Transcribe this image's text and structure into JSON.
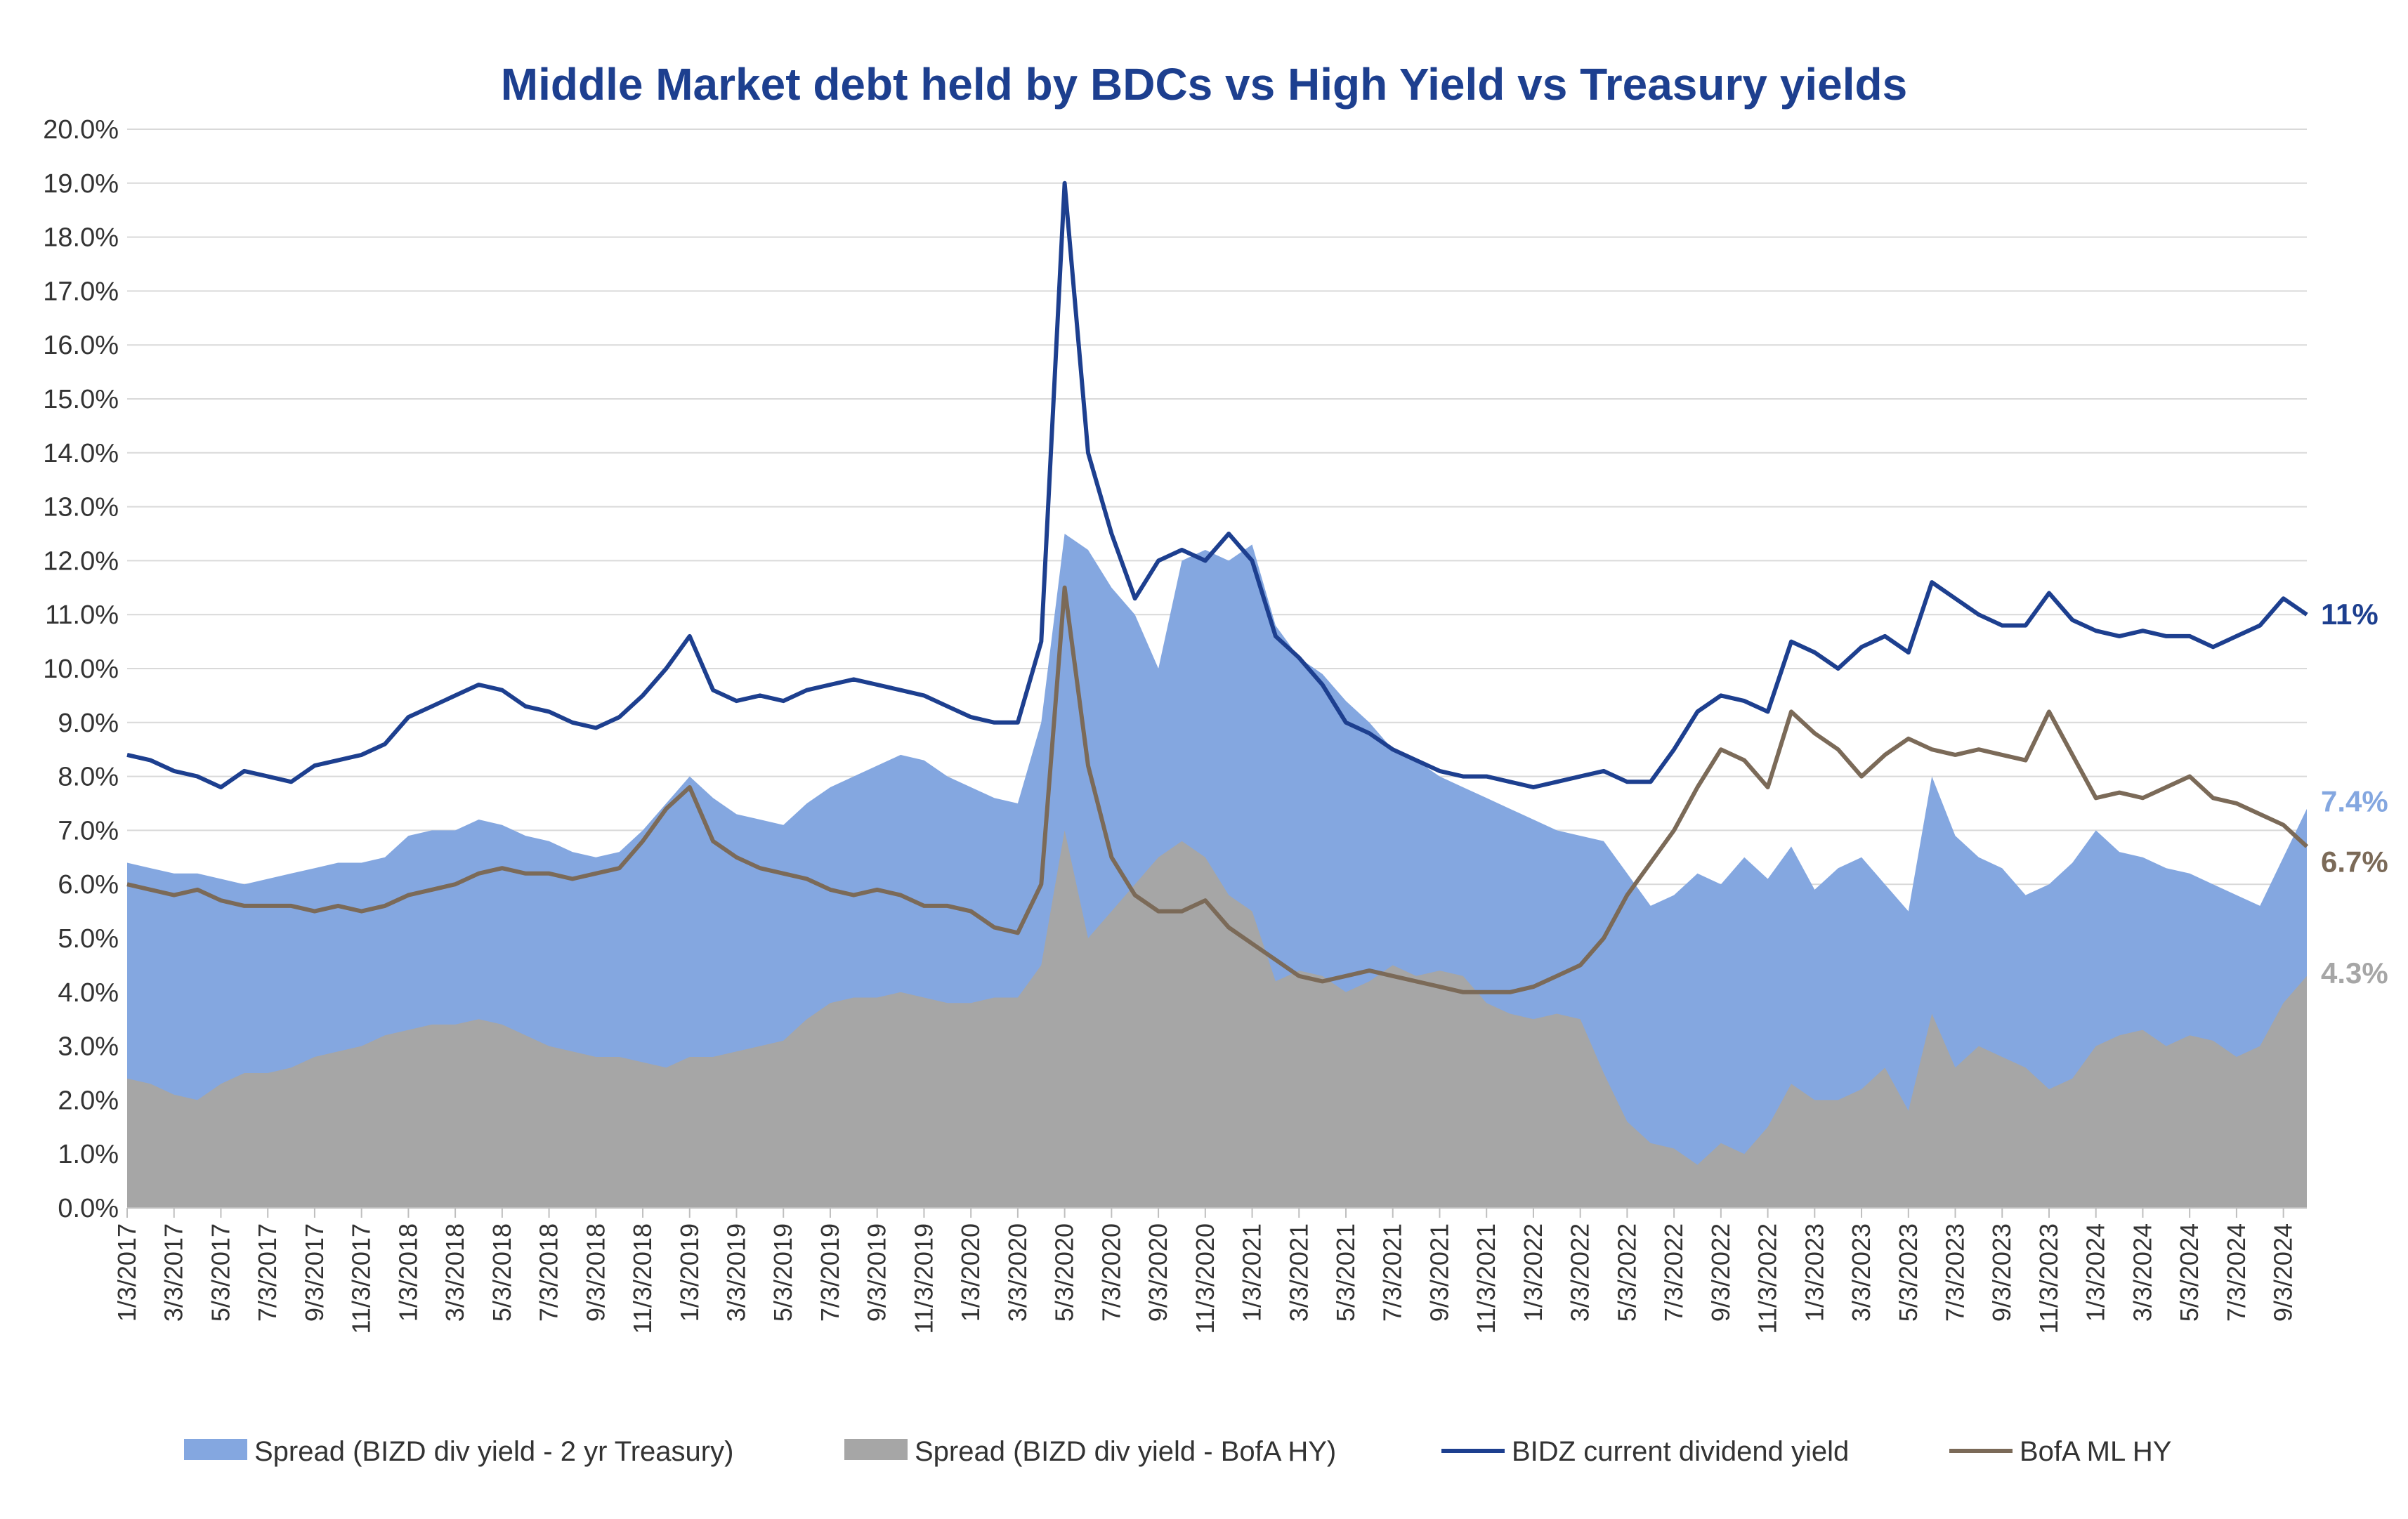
{
  "chart_data": {
    "type": "area",
    "title": "Middle Market debt held by BDCs vs High Yield vs Treasury yields",
    "xlabel": "",
    "ylabel": "",
    "ylim": [
      0,
      20
    ],
    "y_tick_labels": [
      "0.0%",
      "1.0%",
      "2.0%",
      "3.0%",
      "4.0%",
      "5.0%",
      "6.0%",
      "7.0%",
      "8.0%",
      "9.0%",
      "10.0%",
      "11.0%",
      "12.0%",
      "13.0%",
      "14.0%",
      "15.0%",
      "16.0%",
      "17.0%",
      "18.0%",
      "19.0%",
      "20.0%"
    ],
    "x_tick_labels": [
      "1/3/2017",
      "3/3/2017",
      "5/3/2017",
      "7/3/2017",
      "9/3/2017",
      "11/3/2017",
      "1/3/2018",
      "3/3/2018",
      "5/3/2018",
      "7/3/2018",
      "9/3/2018",
      "11/3/2018",
      "1/3/2019",
      "3/3/2019",
      "5/3/2019",
      "7/3/2019",
      "9/3/2019",
      "11/3/2019",
      "1/3/2020",
      "3/3/2020",
      "5/3/2020",
      "7/3/2020",
      "9/3/2020",
      "11/3/2020",
      "1/3/2021",
      "3/3/2021",
      "5/3/2021",
      "7/3/2021",
      "9/3/2021",
      "11/3/2021",
      "1/3/2022",
      "3/3/2022",
      "5/3/2022",
      "7/3/2022",
      "9/3/2022",
      "11/3/2022",
      "1/3/2023",
      "3/3/2023",
      "5/3/2023",
      "7/3/2023",
      "9/3/2023",
      "11/3/2023",
      "1/3/2024",
      "3/3/2024",
      "5/3/2024",
      "7/3/2024",
      "9/3/2024"
    ],
    "x_months": [
      0,
      1,
      2,
      3,
      4,
      5,
      6,
      7,
      8,
      9,
      10,
      11,
      12,
      13,
      14,
      15,
      16,
      17,
      18,
      19,
      20,
      21,
      22,
      23,
      24,
      25,
      26,
      27,
      28,
      29,
      30,
      31,
      32,
      33,
      34,
      35,
      36,
      37,
      38,
      39,
      40,
      41,
      42,
      43,
      44,
      45,
      46,
      47,
      48,
      49,
      50,
      51,
      52,
      53,
      54,
      55,
      56,
      57,
      58,
      59,
      60,
      61,
      62,
      63,
      64,
      65,
      66,
      67,
      68,
      69,
      70,
      71,
      72,
      73,
      74,
      75,
      76,
      77,
      78,
      79,
      80,
      81,
      82,
      83,
      84,
      85,
      86,
      87,
      88,
      89,
      90,
      91,
      92,
      93
    ],
    "x_range_months": [
      0,
      93
    ],
    "series": [
      {
        "name": "Spread (BIZD div yield - 2 yr Treasury)",
        "kind": "area",
        "color": "#84a7e0",
        "end_label": "7.4%",
        "values": [
          6.4,
          6.3,
          6.2,
          6.2,
          6.1,
          6.0,
          6.1,
          6.2,
          6.3,
          6.4,
          6.4,
          6.5,
          6.9,
          7.0,
          7.0,
          7.2,
          7.1,
          6.9,
          6.8,
          6.6,
          6.5,
          6.6,
          7.0,
          7.5,
          8.0,
          7.6,
          7.3,
          7.2,
          7.1,
          7.5,
          7.8,
          8.0,
          8.2,
          8.4,
          8.3,
          8.0,
          7.8,
          7.6,
          7.5,
          9.0,
          12.5,
          12.2,
          11.5,
          11.0,
          10.0,
          12.0,
          12.2,
          12.0,
          12.3,
          10.8,
          10.2,
          9.9,
          9.4,
          9.0,
          8.5,
          8.3,
          8.0,
          7.8,
          7.6,
          7.4,
          7.2,
          7.0,
          6.9,
          6.8,
          6.2,
          5.6,
          5.8,
          6.2,
          6.0,
          6.5,
          6.1,
          6.7,
          5.9,
          6.3,
          6.5,
          6.0,
          5.5,
          8.0,
          6.9,
          6.5,
          6.3,
          5.8,
          6.0,
          6.4,
          7.0,
          6.6,
          6.5,
          6.3,
          6.2,
          6.0,
          5.8,
          5.6,
          6.5,
          7.4
        ]
      },
      {
        "name": "Spread (BIZD div yield - BofA HY)",
        "kind": "area",
        "color": "#a6a6a6",
        "end_label": "4.3%",
        "values": [
          2.4,
          2.3,
          2.1,
          2.0,
          2.3,
          2.5,
          2.5,
          2.6,
          2.8,
          2.9,
          3.0,
          3.2,
          3.3,
          3.4,
          3.4,
          3.5,
          3.4,
          3.2,
          3.0,
          2.9,
          2.8,
          2.8,
          2.7,
          2.6,
          2.8,
          2.8,
          2.9,
          3.0,
          3.1,
          3.5,
          3.8,
          3.9,
          3.9,
          4.0,
          3.9,
          3.8,
          3.8,
          3.9,
          3.9,
          4.5,
          7.0,
          5.0,
          5.5,
          6.0,
          6.5,
          6.8,
          6.5,
          5.8,
          5.5,
          4.2,
          4.4,
          4.3,
          4.0,
          4.2,
          4.5,
          4.3,
          4.4,
          4.3,
          3.8,
          3.6,
          3.5,
          3.6,
          3.5,
          2.5,
          1.6,
          1.2,
          1.1,
          0.8,
          1.2,
          1.0,
          1.5,
          2.3,
          2.0,
          2.0,
          2.2,
          2.6,
          1.8,
          3.6,
          2.6,
          3.0,
          2.8,
          2.6,
          2.2,
          2.4,
          3.0,
          3.2,
          3.3,
          3.0,
          3.2,
          3.1,
          2.8,
          3.0,
          3.8,
          4.3
        ]
      },
      {
        "name": "BIDZ current dividend yield",
        "kind": "line",
        "color": "#1d3f8f",
        "end_label": "11%",
        "values": [
          8.4,
          8.3,
          8.1,
          8.0,
          7.8,
          8.1,
          8.0,
          7.9,
          8.2,
          8.3,
          8.4,
          8.6,
          9.1,
          9.3,
          9.5,
          9.7,
          9.6,
          9.3,
          9.2,
          9.0,
          8.9,
          9.1,
          9.5,
          10.0,
          10.6,
          9.6,
          9.4,
          9.5,
          9.4,
          9.6,
          9.7,
          9.8,
          9.7,
          9.6,
          9.5,
          9.3,
          9.1,
          9.0,
          9.0,
          10.5,
          19.0,
          14.0,
          12.5,
          11.3,
          12.0,
          12.2,
          12.0,
          12.5,
          12.0,
          10.6,
          10.2,
          9.7,
          9.0,
          8.8,
          8.5,
          8.3,
          8.1,
          8.0,
          8.0,
          7.9,
          7.8,
          7.9,
          8.0,
          8.1,
          7.9,
          7.9,
          8.5,
          9.2,
          9.5,
          9.4,
          9.2,
          10.5,
          10.3,
          10.0,
          10.4,
          10.6,
          10.3,
          11.6,
          11.3,
          11.0,
          10.8,
          10.8,
          11.4,
          10.9,
          10.7,
          10.6,
          10.7,
          10.6,
          10.6,
          10.4,
          10.6,
          10.8,
          11.3,
          11.0
        ]
      },
      {
        "name": "BofA ML HY",
        "kind": "line",
        "color": "#7b6a58",
        "end_label": "6.7%",
        "values": [
          6.0,
          5.9,
          5.8,
          5.9,
          5.7,
          5.6,
          5.6,
          5.6,
          5.5,
          5.6,
          5.5,
          5.6,
          5.8,
          5.9,
          6.0,
          6.2,
          6.3,
          6.2,
          6.2,
          6.1,
          6.2,
          6.3,
          6.8,
          7.4,
          7.8,
          6.8,
          6.5,
          6.3,
          6.2,
          6.1,
          5.9,
          5.8,
          5.9,
          5.8,
          5.6,
          5.6,
          5.5,
          5.2,
          5.1,
          6.0,
          11.5,
          8.2,
          6.5,
          5.8,
          5.5,
          5.5,
          5.7,
          5.2,
          4.9,
          4.6,
          4.3,
          4.2,
          4.3,
          4.4,
          4.3,
          4.2,
          4.1,
          4.0,
          4.0,
          4.0,
          4.1,
          4.3,
          4.5,
          5.0,
          5.8,
          6.4,
          7.0,
          7.8,
          8.5,
          8.3,
          7.8,
          9.2,
          8.8,
          8.5,
          8.0,
          8.4,
          8.7,
          8.5,
          8.4,
          8.5,
          8.4,
          8.3,
          9.2,
          8.4,
          7.6,
          7.7,
          7.6,
          7.8,
          8.0,
          7.6,
          7.5,
          7.3,
          7.1,
          6.7
        ]
      }
    ],
    "legend_position": "bottom",
    "grid": true
  }
}
